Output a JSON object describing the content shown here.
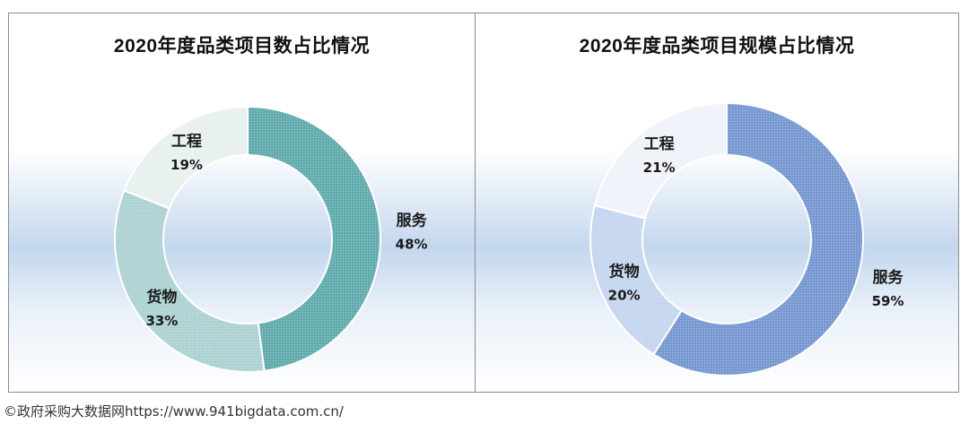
{
  "source_note": "©政府采购大数据网https://www.941bigdata.com.cn/",
  "chart_data": [
    {
      "type": "pie",
      "donut": true,
      "title": "2020年度品类项目数占比情况",
      "slices": [
        {
          "label": "服务",
          "value": 48,
          "value_label": "48%",
          "color": "#5aa7a9"
        },
        {
          "label": "货物",
          "value": 33,
          "value_label": "33%",
          "color": "#a9cfcf"
        },
        {
          "label": "工程",
          "value": 19,
          "value_label": "19%",
          "color": "#e6f0ef"
        }
      ]
    },
    {
      "type": "pie",
      "donut": true,
      "title": "2020年度品类项目规模占比情况",
      "slices": [
        {
          "label": "服务",
          "value": 59,
          "value_label": "59%",
          "color": "#6f93cf"
        },
        {
          "label": "货物",
          "value": 20,
          "value_label": "20%",
          "color": "#c2d3ee"
        },
        {
          "label": "工程",
          "value": 21,
          "value_label": "21%",
          "color": "#eef2f9"
        }
      ]
    }
  ]
}
